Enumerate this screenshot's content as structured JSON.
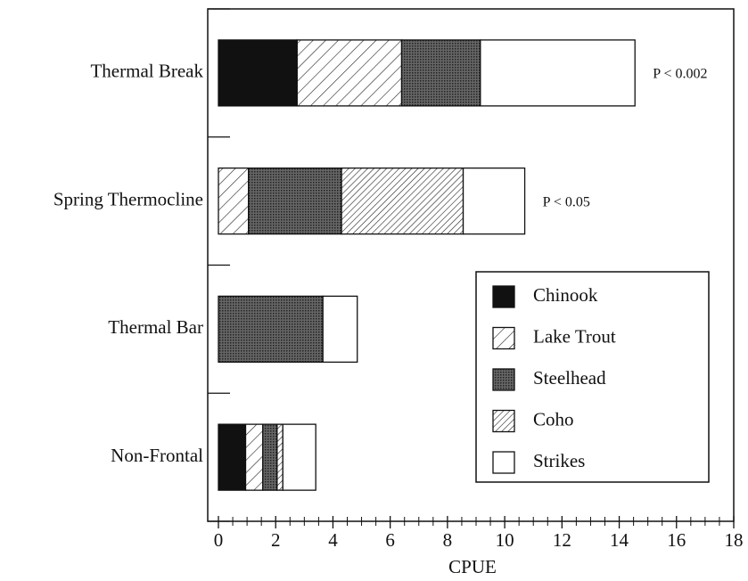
{
  "chart_data": {
    "type": "stacked_barh",
    "categories": [
      "Thermal Break",
      "Spring Thermocline",
      "Thermal Bar",
      "Non-Frontal"
    ],
    "series": [
      {
        "name": "Chinook",
        "color": "#111111",
        "hatch": "solid",
        "values": [
          2.75,
          0,
          0,
          0.95
        ]
      },
      {
        "name": "Lake Trout",
        "color": "#ffffff",
        "hatch": "wide",
        "values": [
          3.65,
          1.05,
          0,
          0.6
        ]
      },
      {
        "name": "Steelhead",
        "color": "#555555",
        "hatch": "stipple",
        "values": [
          2.75,
          3.25,
          3.65,
          0.5
        ]
      },
      {
        "name": "Coho",
        "color": "#ffffff",
        "hatch": "dense",
        "values": [
          0,
          4.25,
          0,
          0.2
        ]
      },
      {
        "name": "Strikes",
        "color": "#ffffff",
        "hatch": "solid",
        "values": [
          5.4,
          2.15,
          1.2,
          1.15
        ]
      }
    ],
    "annotations": [
      "P < 0.002",
      "P < 0.05"
    ],
    "xlabel": "CPUE",
    "xlim": [
      0,
      18
    ],
    "xticks": [
      0,
      2,
      4,
      6,
      8,
      10,
      12,
      14,
      16,
      18
    ],
    "xminorticks": [
      0.5,
      1,
      1.5,
      2.5,
      3,
      3.5,
      4.5,
      5,
      5.5,
      6.5,
      7,
      7.5,
      8.5,
      9,
      9.5,
      10.5,
      11,
      11.5,
      12.5,
      13,
      13.5,
      14.5,
      15,
      15.5,
      16.5,
      17,
      17.5
    ],
    "legend": "lower right"
  }
}
